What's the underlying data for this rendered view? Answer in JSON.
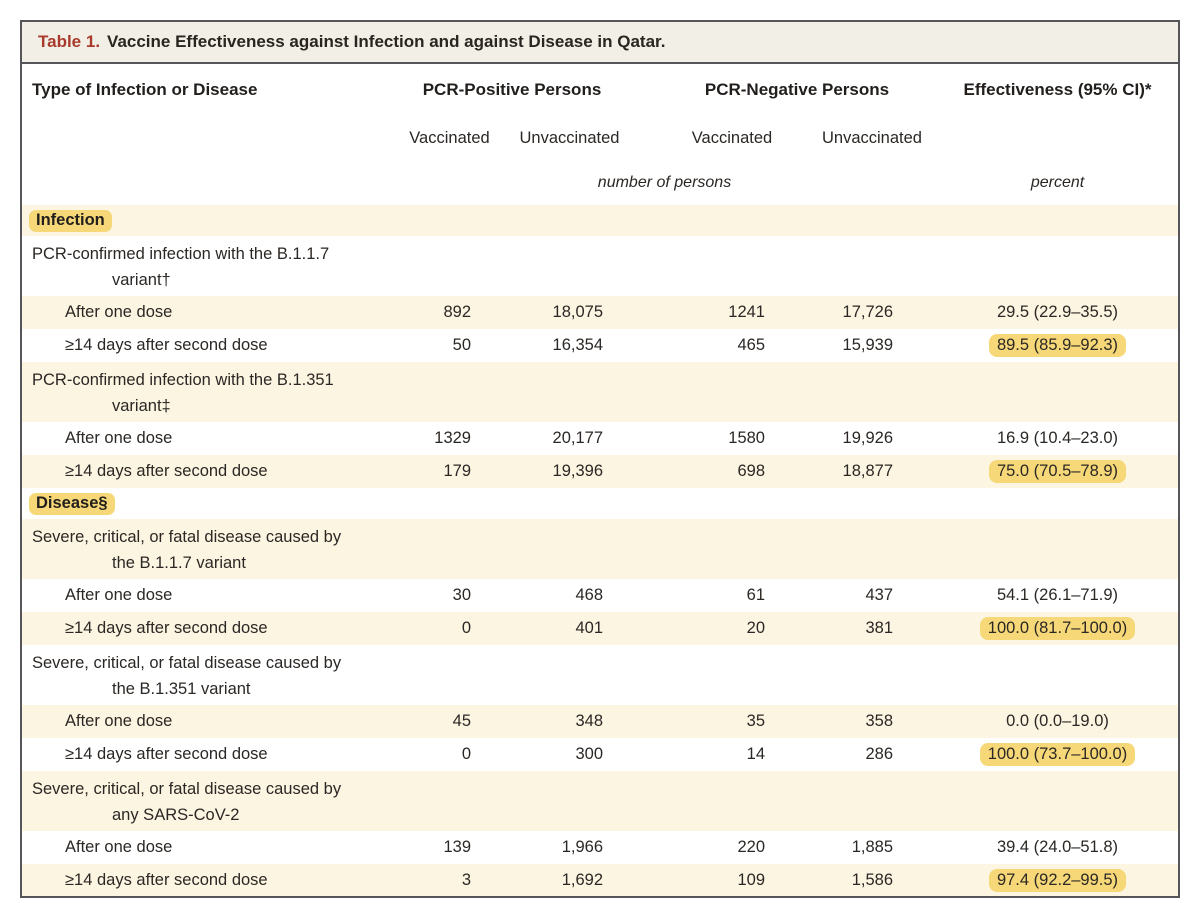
{
  "colors": {
    "accent_red": "#a93a2b",
    "highlight_yellow": "#f6d878",
    "band_cream": "#fcf5e2",
    "titlebar_bg": "#f2efe7",
    "border_dark": "#55555a",
    "text": "#2b2724"
  },
  "table": {
    "title_label": "Table 1.",
    "title_text": "Vaccine Effectiveness against Infection and against Disease in Qatar.",
    "columns": {
      "col1": "Type of Infection or Disease",
      "group1": "PCR-Positive Persons",
      "group2": "PCR-Negative Persons",
      "effectiveness": "Effectiveness (95% CI)*",
      "sub": [
        "Vaccinated",
        "Unvaccinated",
        "Vaccinated",
        "Unvaccinated"
      ],
      "units_persons": "number of persons",
      "units_percent": "percent"
    },
    "rows": [
      {
        "type": "section",
        "label": "Infection"
      },
      {
        "type": "label2",
        "label": "PCR-confirmed infection with the B.1.1.7",
        "label2": "variant†"
      },
      {
        "type": "data",
        "label": "After one dose",
        "pcrpos_vacc": "892",
        "pcrpos_unvacc": "18,075",
        "pcrneg_vacc": "1241",
        "pcrneg_unvacc": "17,726",
        "eff": "29.5 (22.9–35.5)",
        "highlighted": false
      },
      {
        "type": "data",
        "label": "≥14 days after second dose",
        "pcrpos_vacc": "50",
        "pcrpos_unvacc": "16,354",
        "pcrneg_vacc": "465",
        "pcrneg_unvacc": "15,939",
        "eff": "89.5 (85.9–92.3)",
        "highlighted": true
      },
      {
        "type": "label2",
        "label": "PCR-confirmed infection with the B.1.351",
        "label2": "variant‡"
      },
      {
        "type": "data",
        "label": "After one dose",
        "pcrpos_vacc": "1329",
        "pcrpos_unvacc": "20,177",
        "pcrneg_vacc": "1580",
        "pcrneg_unvacc": "19,926",
        "eff": "16.9 (10.4–23.0)",
        "highlighted": false
      },
      {
        "type": "data",
        "label": "≥14 days after second dose",
        "pcrpos_vacc": "179",
        "pcrpos_unvacc": "19,396",
        "pcrneg_vacc": "698",
        "pcrneg_unvacc": "18,877",
        "eff": "75.0 (70.5–78.9)",
        "highlighted": true
      },
      {
        "type": "section",
        "label": "Disease§"
      },
      {
        "type": "label2",
        "label": "Severe, critical, or fatal disease caused by",
        "label2": "the B.1.1.7 variant"
      },
      {
        "type": "data",
        "label": "After one dose",
        "pcrpos_vacc": "30",
        "pcrpos_unvacc": "468",
        "pcrneg_vacc": "61",
        "pcrneg_unvacc": "437",
        "eff": "54.1 (26.1–71.9)",
        "highlighted": false
      },
      {
        "type": "data",
        "label": "≥14 days after second dose",
        "pcrpos_vacc": "0",
        "pcrpos_unvacc": "401",
        "pcrneg_vacc": "20",
        "pcrneg_unvacc": "381",
        "eff": "100.0 (81.7–100.0)",
        "highlighted": true
      },
      {
        "type": "label2",
        "label": "Severe, critical, or fatal disease caused by",
        "label2": "the B.1.351 variant"
      },
      {
        "type": "data",
        "label": "After one dose",
        "pcrpos_vacc": "45",
        "pcrpos_unvacc": "348",
        "pcrneg_vacc": "35",
        "pcrneg_unvacc": "358",
        "eff": "0.0 (0.0–19.0)",
        "highlighted": false
      },
      {
        "type": "data",
        "label": "≥14 days after second dose",
        "pcrpos_vacc": "0",
        "pcrpos_unvacc": "300",
        "pcrneg_vacc": "14",
        "pcrneg_unvacc": "286",
        "eff": "100.0 (73.7–100.0)",
        "highlighted": true
      },
      {
        "type": "label2",
        "label": "Severe, critical, or fatal disease caused by",
        "label2": "any SARS-CoV-2"
      },
      {
        "type": "data",
        "label": "After one dose",
        "pcrpos_vacc": "139",
        "pcrpos_unvacc": "1,966",
        "pcrneg_vacc": "220",
        "pcrneg_unvacc": "1,885",
        "eff": "39.4 (24.0–51.8)",
        "highlighted": false
      },
      {
        "type": "data",
        "label": "≥14 days after second dose",
        "pcrpos_vacc": "3",
        "pcrpos_unvacc": "1,692",
        "pcrneg_vacc": "109",
        "pcrneg_unvacc": "1,586",
        "eff": "97.4 (92.2–99.5)",
        "highlighted": true
      }
    ]
  }
}
